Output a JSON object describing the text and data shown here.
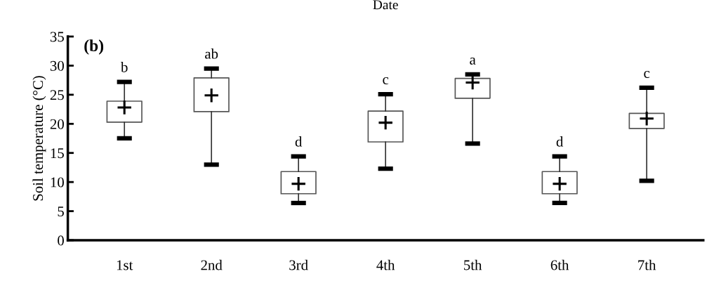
{
  "chart_data": {
    "type": "box",
    "xlabel": "Date",
    "ylabel": "Soil temperature (°C)",
    "categories": [
      "1st",
      "2nd",
      "3rd",
      "4th",
      "5th",
      "6th",
      "7th"
    ],
    "boxes": [
      {
        "low": 17.5,
        "q1": 20.3,
        "q3": 23.9,
        "high": 27.2,
        "mean": 22.8
      },
      {
        "low": 13.0,
        "q1": 22.1,
        "q3": 27.9,
        "high": 29.5,
        "mean": 24.9
      },
      {
        "low": 6.4,
        "q1": 8.0,
        "q3": 11.8,
        "high": 14.4,
        "mean": 9.7
      },
      {
        "low": 12.3,
        "q1": 16.9,
        "q3": 22.2,
        "high": 25.1,
        "mean": 20.2
      },
      {
        "low": 16.6,
        "q1": 24.4,
        "q3": 27.8,
        "high": 28.5,
        "mean": 27.1
      },
      {
        "low": 6.4,
        "q1": 8.0,
        "q3": 11.8,
        "high": 14.4,
        "mean": 9.7
      },
      {
        "low": 10.2,
        "q1": 19.2,
        "q3": 21.8,
        "high": 26.2,
        "mean": 20.9
      }
    ],
    "ylim": [
      0,
      35
    ],
    "yticks": [
      0,
      5,
      10,
      15,
      20,
      25,
      30,
      35
    ],
    "grid": false,
    "marker": "cross",
    "annotations": [
      "(b)",
      "b",
      "ab",
      "d",
      "c",
      "a",
      "d",
      "c"
    ]
  }
}
